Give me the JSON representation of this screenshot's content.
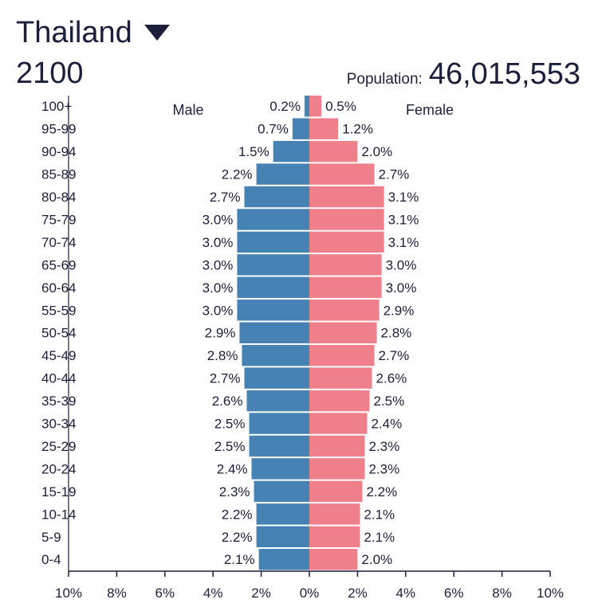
{
  "header": {
    "country": "Thailand",
    "year": "2100",
    "population_label": "Population:",
    "population_value": "46,015,553"
  },
  "chart_data": {
    "type": "bar",
    "orientation": "horizontal",
    "layout": "population-pyramid",
    "categories": [
      "100+",
      "95-99",
      "90-94",
      "85-89",
      "80-84",
      "75-79",
      "70-74",
      "65-69",
      "60-64",
      "55-59",
      "50-54",
      "45-49",
      "40-44",
      "35-39",
      "30-34",
      "25-29",
      "20-24",
      "15-19",
      "10-14",
      "5-9",
      "0-4"
    ],
    "series": [
      {
        "name": "Male",
        "color": "#4682b4",
        "values": [
          0.2,
          0.7,
          1.5,
          2.2,
          2.7,
          3.0,
          3.0,
          3.0,
          3.0,
          3.0,
          2.9,
          2.8,
          2.7,
          2.6,
          2.5,
          2.5,
          2.4,
          2.3,
          2.2,
          2.2,
          2.1
        ],
        "labels": [
          "0.2%",
          "0.7%",
          "1.5%",
          "2.2%",
          "2.7%",
          "3.0%",
          "3.0%",
          "3.0%",
          "3.0%",
          "3.0%",
          "2.9%",
          "2.8%",
          "2.7%",
          "2.6%",
          "2.5%",
          "2.5%",
          "2.4%",
          "2.3%",
          "2.2%",
          "2.2%",
          "2.1%"
        ]
      },
      {
        "name": "Female",
        "color": "#f07f8c",
        "values": [
          0.5,
          1.2,
          2.0,
          2.7,
          3.1,
          3.1,
          3.1,
          3.0,
          3.0,
          2.9,
          2.8,
          2.7,
          2.6,
          2.5,
          2.4,
          2.3,
          2.3,
          2.2,
          2.1,
          2.1,
          2.0
        ],
        "labels": [
          "0.5%",
          "1.2%",
          "2.0%",
          "2.7%",
          "3.1%",
          "3.1%",
          "3.1%",
          "3.0%",
          "3.0%",
          "2.9%",
          "2.8%",
          "2.7%",
          "2.6%",
          "2.5%",
          "2.4%",
          "2.3%",
          "2.3%",
          "2.2%",
          "2.1%",
          "2.1%",
          "2.0%"
        ]
      }
    ],
    "x_ticks": [
      "10%",
      "8%",
      "6%",
      "4%",
      "2%",
      "0%",
      "2%",
      "4%",
      "6%",
      "8%",
      "10%"
    ],
    "xlim": [
      -10,
      10
    ],
    "grid": false
  }
}
